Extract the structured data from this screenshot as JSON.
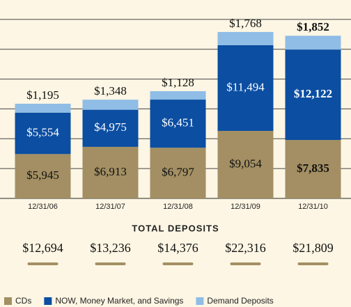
{
  "chart_data": {
    "type": "stacked_bar",
    "categories": [
      "12/31/06",
      "12/31/07",
      "12/31/08",
      "12/31/09",
      "12/31/10"
    ],
    "series": [
      {
        "name": "CDs",
        "color": "#a38f63",
        "values": [
          5945,
          6913,
          6797,
          9054,
          7835
        ],
        "value_labels": [
          "$5,945",
          "$6,913",
          "$6,797",
          "$9,054",
          "$7,835"
        ]
      },
      {
        "name": "NOW, Money Market, and Savings",
        "color": "#0b4ea2",
        "values": [
          5554,
          4975,
          6451,
          11494,
          12122
        ],
        "value_labels": [
          "$5,554",
          "$4,975",
          "$6,451",
          "$11,494",
          "$12,122"
        ]
      },
      {
        "name": "Demand Deposits",
        "color": "#8fbde6",
        "values": [
          1195,
          1348,
          1128,
          1768,
          1852
        ],
        "value_labels": [
          "$1,195",
          "$1,348",
          "$1,128",
          "$1,768",
          "$1,852"
        ]
      }
    ],
    "ylim": [
      0,
      26600
    ],
    "yticks": [
      4000,
      8000,
      12000,
      16000,
      20000,
      24000
    ],
    "grid": true,
    "totals_title": "TOTAL DEPOSITS",
    "total_labels": [
      "$12,694",
      "$13,236",
      "$14,376",
      "$22,316",
      "$21,809"
    ]
  }
}
